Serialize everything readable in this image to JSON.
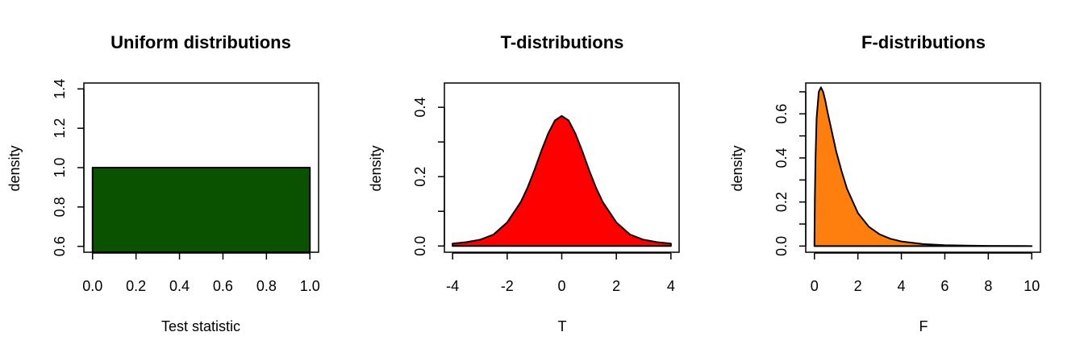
{
  "chart_data": [
    {
      "type": "area",
      "title": "Uniform distributions",
      "xlabel": "Test statistic",
      "ylabel": "density",
      "xlim": [
        -0.04,
        1.04
      ],
      "ylim": [
        0.57,
        1.43
      ],
      "xticks": [
        0.0,
        0.2,
        0.4,
        0.6,
        0.8,
        1.0
      ],
      "xtick_labels": [
        "0.0",
        "0.2",
        "0.4",
        "0.6",
        "0.8",
        "1.0"
      ],
      "yticks": [
        0.6,
        0.8,
        1.0,
        1.2,
        1.4
      ],
      "ytick_labels": [
        "0.6",
        "0.8",
        "1.0",
        "1.2",
        "1.4"
      ],
      "fill_color": "#0a5200",
      "series": [
        {
          "x": [
            0,
            0,
            1,
            1
          ],
          "y": [
            0.57,
            1.0,
            1.0,
            0.57
          ]
        }
      ]
    },
    {
      "type": "area",
      "title": "T-distributions",
      "xlabel": "T",
      "ylabel": "density",
      "xlim": [
        -4.3,
        4.3
      ],
      "ylim": [
        -0.018,
        0.47
      ],
      "xticks": [
        -4,
        -2,
        0,
        2,
        4
      ],
      "xtick_labels": [
        "-4",
        "-2",
        "0",
        "2",
        "4"
      ],
      "yticks": [
        0.0,
        0.1,
        0.2,
        0.3,
        0.4
      ],
      "ytick_labels": [
        "0.0",
        "",
        "0.2",
        "",
        "0.4"
      ],
      "fill_color": "#ff0000",
      "series": [
        {
          "x": [
            -4,
            -3.5,
            -3,
            -2.5,
            -2,
            -1.5,
            -1.25,
            -1,
            -0.75,
            -0.5,
            -0.25,
            0,
            0.25,
            0.5,
            0.75,
            1,
            1.25,
            1.5,
            2,
            2.5,
            3,
            3.5,
            4
          ],
          "y": [
            0.007,
            0.011,
            0.018,
            0.033,
            0.068,
            0.127,
            0.169,
            0.219,
            0.274,
            0.324,
            0.362,
            0.375,
            0.362,
            0.324,
            0.274,
            0.219,
            0.169,
            0.127,
            0.068,
            0.033,
            0.018,
            0.011,
            0.007
          ]
        }
      ]
    },
    {
      "type": "area",
      "title": "F-distributions",
      "xlabel": "F",
      "ylabel": "density",
      "xlim": [
        -0.4,
        10.4
      ],
      "ylim": [
        -0.028,
        0.74
      ],
      "xticks": [
        0,
        2,
        4,
        6,
        8,
        10
      ],
      "xtick_labels": [
        "0",
        "2",
        "4",
        "6",
        "8",
        "10"
      ],
      "yticks": [
        0.0,
        0.1,
        0.2,
        0.3,
        0.4,
        0.5,
        0.6,
        0.7
      ],
      "ytick_labels": [
        "0.0",
        "",
        "0.2",
        "",
        "0.4",
        "",
        "0.6",
        ""
      ],
      "fill_color": "#ff7f0e",
      "series": [
        {
          "x": [
            0,
            0.02,
            0.05,
            0.1,
            0.2,
            0.3,
            0.4,
            0.5,
            0.6,
            0.8,
            1.0,
            1.25,
            1.5,
            2.0,
            2.5,
            3.0,
            3.5,
            4.0,
            5.0,
            6.0,
            7.0,
            8.0,
            10.0
          ],
          "y": [
            0.0,
            0.22,
            0.4,
            0.58,
            0.7,
            0.72,
            0.7,
            0.66,
            0.61,
            0.52,
            0.43,
            0.34,
            0.26,
            0.15,
            0.088,
            0.053,
            0.033,
            0.021,
            0.009,
            0.004,
            0.002,
            0.001,
            0.0
          ]
        }
      ]
    }
  ]
}
